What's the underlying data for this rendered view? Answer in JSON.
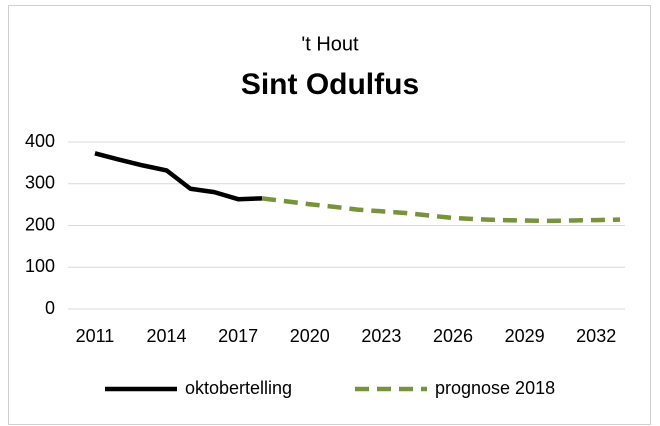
{
  "chart_data": {
    "type": "line",
    "subtitle": "'t Hout",
    "title": "Sint Odulfus",
    "x": [
      2011,
      2012,
      2013,
      2014,
      2015,
      2016,
      2017,
      2018,
      2019,
      2020,
      2021,
      2022,
      2023,
      2024,
      2025,
      2026,
      2027,
      2028,
      2029,
      2030,
      2031,
      2032,
      2033
    ],
    "series": [
      {
        "name": "oktobertelling",
        "color": "#000000",
        "dash": false,
        "values": [
          373,
          358,
          344,
          332,
          288,
          280,
          263,
          265,
          null,
          null,
          null,
          null,
          null,
          null,
          null,
          null,
          null,
          null,
          null,
          null,
          null,
          null,
          null
        ]
      },
      {
        "name": "prognose 2018",
        "color": "#77933c",
        "dash": true,
        "values": [
          null,
          null,
          null,
          null,
          null,
          null,
          null,
          265,
          258,
          251,
          245,
          238,
          234,
          230,
          224,
          218,
          215,
          213,
          212,
          211,
          212,
          213,
          214
        ]
      }
    ],
    "xlim": [
      2010.5,
      2033.5
    ],
    "xticks": [
      2011,
      2014,
      2017,
      2020,
      2023,
      2026,
      2029,
      2032
    ],
    "ylim": [
      0,
      400
    ],
    "yticks": [
      0,
      100,
      200,
      300,
      400
    ],
    "grid": true,
    "legend": "bottom"
  }
}
